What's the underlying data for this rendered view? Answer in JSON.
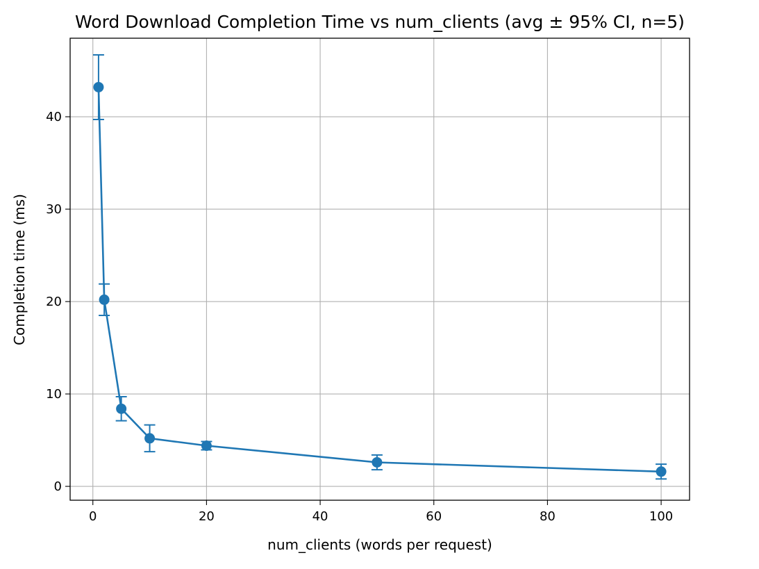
{
  "chart_data": {
    "type": "line",
    "title": "Word Download Completion Time vs num_clients (avg ± 95% CI, n=5)",
    "xlabel": "num_clients (words per request)",
    "ylabel": "Completion time (ms)",
    "xlim": [
      -4,
      105
    ],
    "ylim": [
      -1.5,
      48.5
    ],
    "xticks": [
      0,
      20,
      40,
      60,
      80,
      100
    ],
    "yticks": [
      0,
      10,
      20,
      30,
      40
    ],
    "grid": true,
    "legend": "none",
    "series": [
      {
        "color": "#1f77b4",
        "marker": "circle",
        "error_bars": "95% CI",
        "points": [
          {
            "x": 1,
            "y": 43.2,
            "err": 3.5
          },
          {
            "x": 2,
            "y": 20.2,
            "err": 1.7
          },
          {
            "x": 5,
            "y": 8.4,
            "err": 1.3
          },
          {
            "x": 10,
            "y": 5.2,
            "err": 1.45
          },
          {
            "x": 20,
            "y": 4.4,
            "err": 0.45
          },
          {
            "x": 50,
            "y": 2.6,
            "err": 0.8
          },
          {
            "x": 100,
            "y": 1.6,
            "err": 0.8
          }
        ]
      }
    ]
  }
}
